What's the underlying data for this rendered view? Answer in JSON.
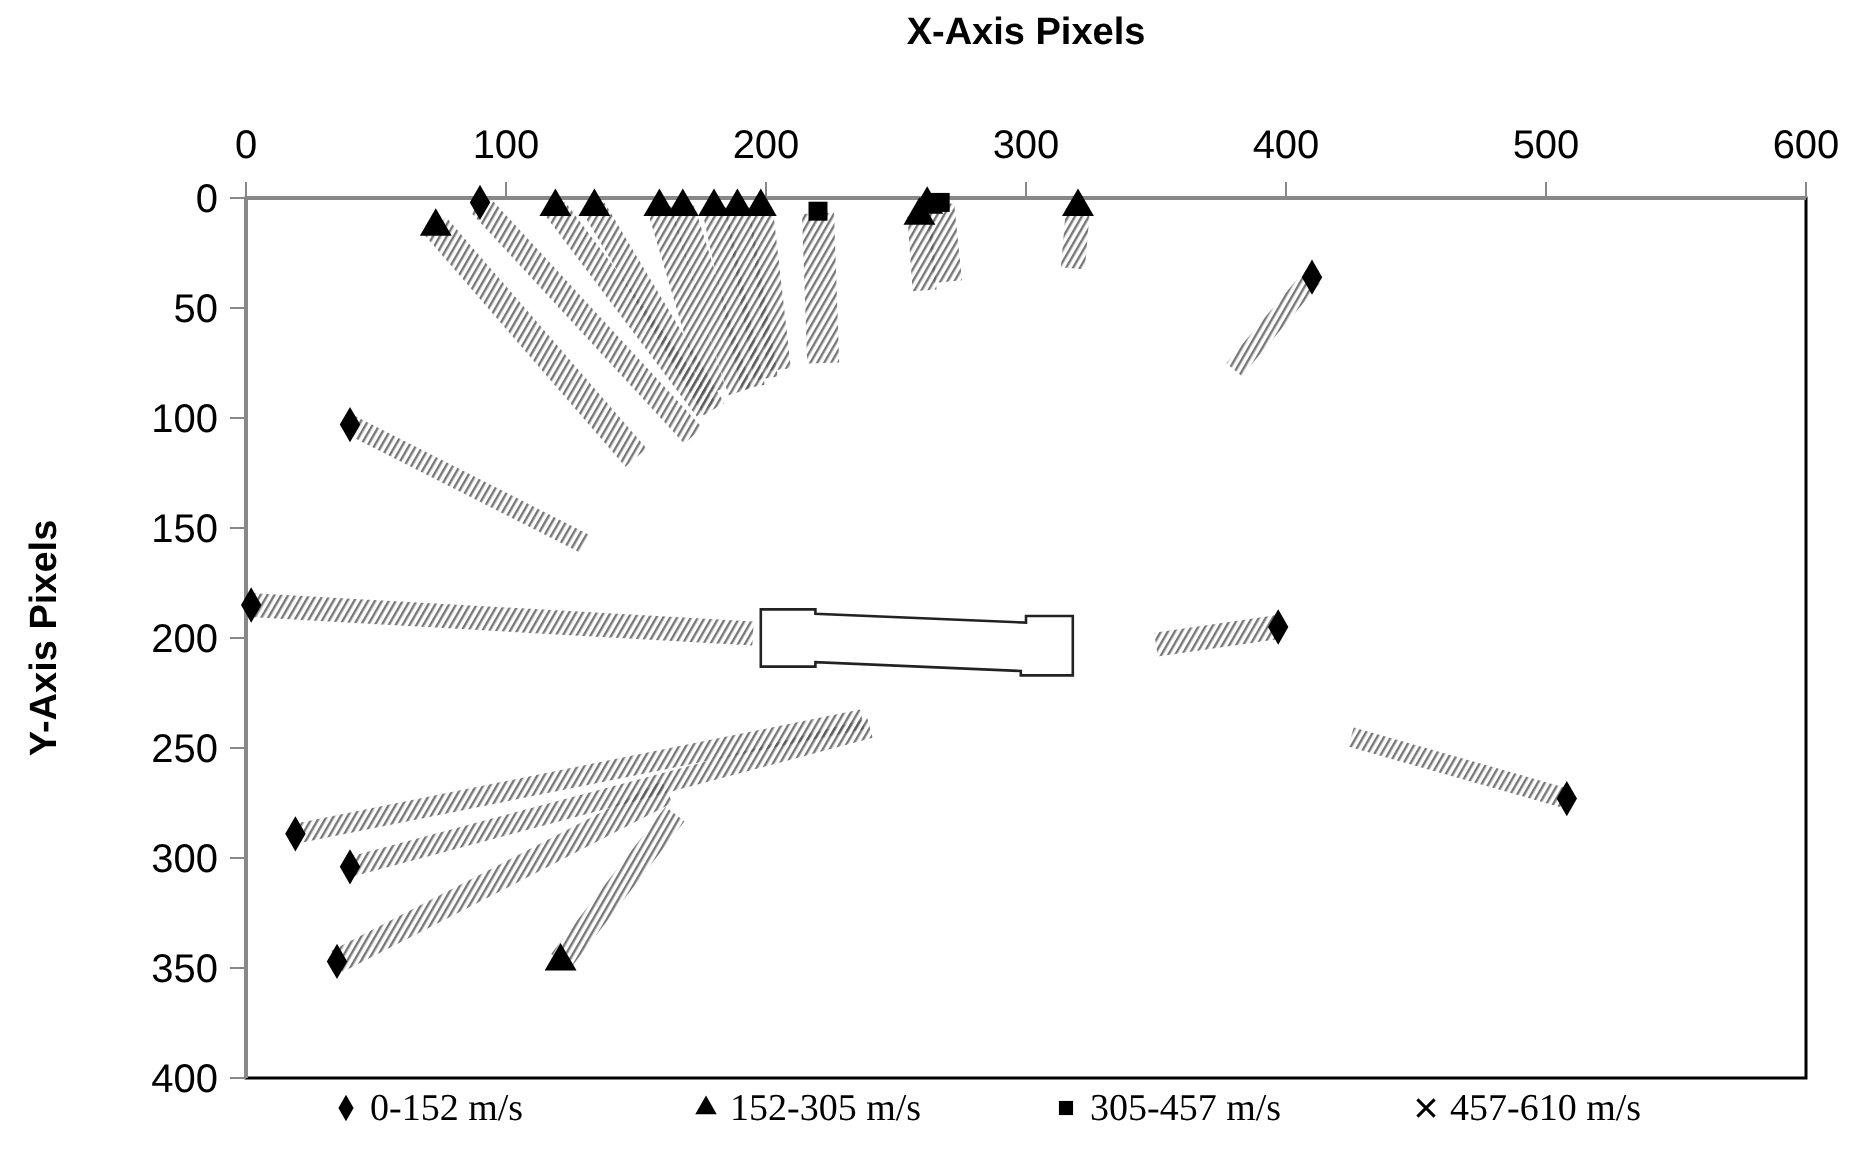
{
  "chart_data": {
    "type": "scatter",
    "xlabel": "X-Axis Pixels",
    "ylabel": "Y-Axis Pixels",
    "xlim": [
      0,
      600
    ],
    "xticks": [
      0,
      100,
      200,
      300,
      400,
      500,
      600
    ],
    "ylim": [
      400,
      0
    ],
    "yticks": [
      0,
      50,
      100,
      150,
      200,
      250,
      300,
      350,
      400
    ],
    "grid": false,
    "legend": "bottom",
    "series": [
      {
        "name": "0-152 m/s",
        "color": "#000000",
        "marker": "diamond",
        "x": [
          90,
          40,
          2,
          397,
          410,
          508,
          19,
          40,
          35
        ],
        "values": [
          2,
          103,
          185,
          195,
          36,
          273,
          289,
          304,
          347
        ]
      },
      {
        "name": "152-305 m/s",
        "color": "#000000",
        "marker": "triangle",
        "x": [
          73,
          119,
          134,
          159,
          168,
          180,
          189,
          198,
          259,
          262,
          320,
          121
        ],
        "values": [
          13,
          4,
          4,
          4,
          4,
          4,
          4,
          4,
          8,
          3,
          4,
          347
        ]
      },
      {
        "name": "305-457 m/s",
        "color": "#000000",
        "marker": "square",
        "x": [
          220,
          267
        ],
        "values": [
          6,
          2
        ]
      },
      {
        "name": "457-610 m/s",
        "color": "#000000",
        "marker": "cross"
      }
    ]
  }
}
